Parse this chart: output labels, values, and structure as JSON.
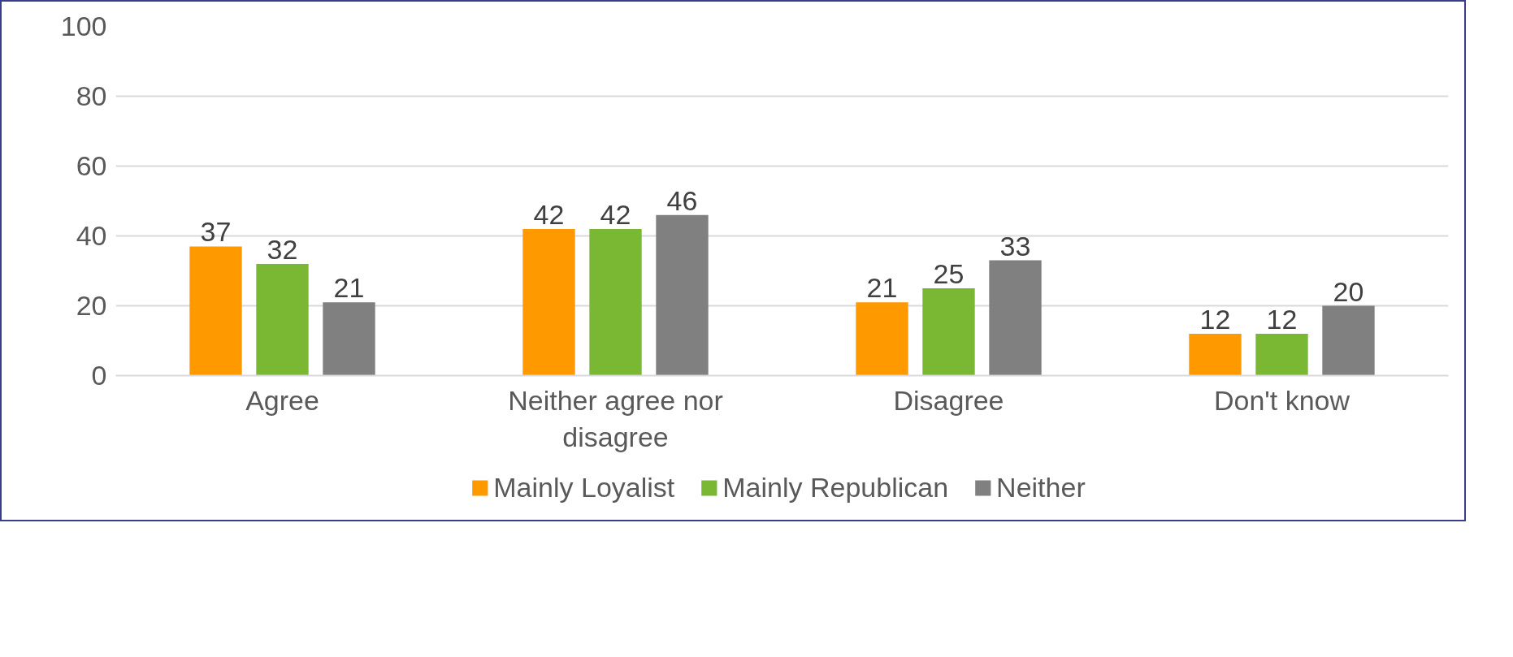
{
  "chart_data": {
    "type": "bar",
    "categories": [
      "Agree",
      "Neither agree nor disagree",
      "Disagree",
      "Don't know"
    ],
    "series": [
      {
        "name": "Mainly Loyalist",
        "color": "#ff9900",
        "values": [
          37,
          42,
          21,
          12
        ]
      },
      {
        "name": "Mainly Republican",
        "color": "#7ab833",
        "values": [
          32,
          42,
          25,
          12
        ]
      },
      {
        "name": "Neither",
        "color": "#808080",
        "values": [
          21,
          46,
          33,
          20
        ]
      }
    ],
    "ylim": [
      0,
      100
    ],
    "yticks": [
      0,
      20,
      40,
      60,
      80,
      100
    ],
    "grid": "y",
    "legend": "bottom",
    "data_labels": true
  }
}
